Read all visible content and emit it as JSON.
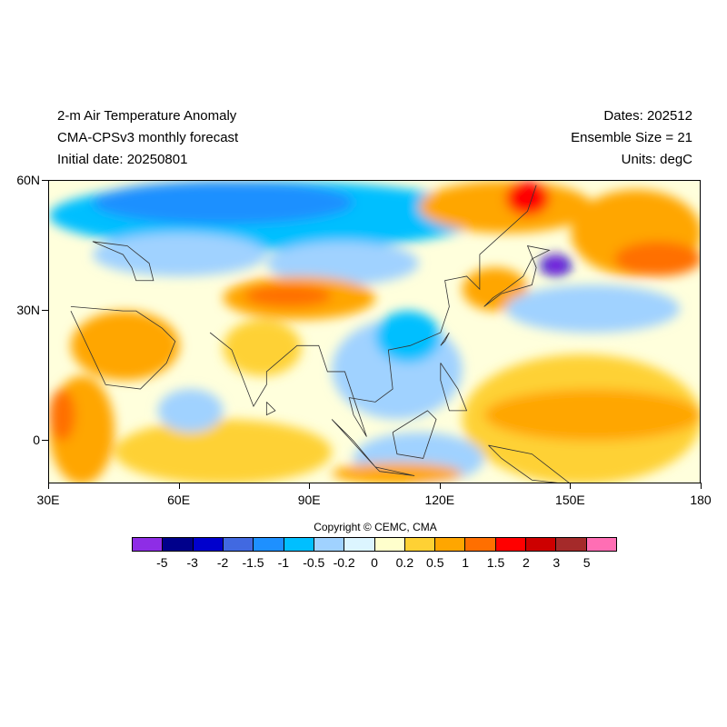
{
  "header": {
    "title": "2-m Air Temperature Anomaly",
    "model": "CMA-CPSv3 monthly forecast",
    "initial": "Initial date: 20250801",
    "dates": "Dates: 202512",
    "ensemble": "Ensemble Size = 21",
    "units": "Units: degC"
  },
  "map": {
    "projection": "equirectangular",
    "extent": {
      "lon": [
        30,
        180
      ],
      "lat": [
        -10,
        60
      ]
    },
    "lat_ticks": [
      {
        "value": 60,
        "label": "60N"
      },
      {
        "value": 30,
        "label": "30N"
      },
      {
        "value": 0,
        "label": "0"
      }
    ],
    "lon_ticks": [
      {
        "value": 30,
        "label": "30E"
      },
      {
        "value": 60,
        "label": "60E"
      },
      {
        "value": 90,
        "label": "90E"
      },
      {
        "value": 120,
        "label": "120E"
      },
      {
        "value": 150,
        "label": "150E"
      },
      {
        "value": 180,
        "label": "180"
      }
    ],
    "fields": [
      {
        "name": "arctic-siberia-cold",
        "lon": [
          30,
          130
        ],
        "lat": [
          44,
          60
        ],
        "level": -0.5
      },
      {
        "name": "siberia-deep-cold",
        "lon": [
          40,
          100
        ],
        "lat": [
          50,
          60
        ],
        "level": -1
      },
      {
        "name": "central-asia-cool",
        "lon": [
          40,
          80
        ],
        "lat": [
          38,
          48
        ],
        "level": -0.2
      },
      {
        "name": "mongolia-cool",
        "lon": [
          80,
          115
        ],
        "lat": [
          36,
          46
        ],
        "level": -0.2
      },
      {
        "name": "far-east-warm",
        "lon": [
          115,
          155
        ],
        "lat": [
          48,
          60
        ],
        "level": 0.5
      },
      {
        "name": "okhotsk-hot",
        "lon": [
          135,
          145
        ],
        "lat": [
          52,
          60
        ],
        "level": 1.5
      },
      {
        "name": "north-pacific-warm",
        "lon": [
          150,
          180
        ],
        "lat": [
          38,
          58
        ],
        "level": 0.5
      },
      {
        "name": "north-pacific-hot",
        "lon": [
          160,
          180
        ],
        "lat": [
          38,
          46
        ],
        "level": 1
      },
      {
        "name": "japan-cold-core",
        "lon": [
          143,
          150
        ],
        "lat": [
          38,
          43
        ],
        "level": -2
      },
      {
        "name": "japan-cold-center",
        "lon": [
          145,
          148
        ],
        "lat": [
          39,
          42
        ],
        "level": -5
      },
      {
        "name": "korea-warm",
        "lon": [
          125,
          140
        ],
        "lat": [
          30,
          40
        ],
        "level": 0.5
      },
      {
        "name": "nw-pacific-cool",
        "lon": [
          135,
          175
        ],
        "lat": [
          25,
          36
        ],
        "level": -0.2
      },
      {
        "name": "arabia-warm",
        "lon": [
          35,
          60
        ],
        "lat": [
          14,
          30
        ],
        "level": 0.5
      },
      {
        "name": "east-africa-warm",
        "lon": [
          30,
          45
        ],
        "lat": [
          -10,
          15
        ],
        "level": 0.5
      },
      {
        "name": "east-africa-hot",
        "lon": [
          30,
          36
        ],
        "lat": [
          0,
          12
        ],
        "level": 1
      },
      {
        "name": "tibet-warm",
        "lon": [
          70,
          105
        ],
        "lat": [
          28,
          38
        ],
        "level": 0.5
      },
      {
        "name": "tibet-hot",
        "lon": [
          75,
          95
        ],
        "lat": [
          31,
          36
        ],
        "level": 1
      },
      {
        "name": "india-warm",
        "lon": [
          70,
          88
        ],
        "lat": [
          15,
          28
        ],
        "level": 0.2
      },
      {
        "name": "se-asia-cool",
        "lon": [
          95,
          125
        ],
        "lat": [
          5,
          28
        ],
        "level": -0.2
      },
      {
        "name": "south-china-cool",
        "lon": [
          105,
          120
        ],
        "lat": [
          18,
          30
        ],
        "level": -0.5
      },
      {
        "name": "indian-ocean-warm",
        "lon": [
          45,
          95
        ],
        "lat": [
          -10,
          5
        ],
        "level": 0.2
      },
      {
        "name": "equatorial-pacific-warm",
        "lon": [
          125,
          180
        ],
        "lat": [
          -10,
          20
        ],
        "level": 0.2
      },
      {
        "name": "pacific-warm-band",
        "lon": [
          130,
          180
        ],
        "lat": [
          0,
          12
        ],
        "level": 0.5
      },
      {
        "name": "arabian-sea-cool",
        "lon": [
          55,
          70
        ],
        "lat": [
          2,
          12
        ],
        "level": -0.2
      },
      {
        "name": "maritime-cool",
        "lon": [
          100,
          130
        ],
        "lat": [
          -10,
          2
        ],
        "level": -0.2
      },
      {
        "name": "south-ocean-warm",
        "lon": [
          95,
          125
        ],
        "lat": [
          -10,
          -5
        ],
        "level": 0.5
      }
    ],
    "coastlines": [
      [
        [
          35,
          30
        ],
        [
          43,
          13
        ],
        [
          51,
          12
        ],
        [
          57,
          18
        ],
        [
          59,
          23
        ],
        [
          56,
          26
        ],
        [
          50,
          30
        ],
        [
          47,
          30
        ],
        [
          35,
          31
        ]
      ],
      [
        [
          67,
          25
        ],
        [
          72,
          21
        ],
        [
          77,
          8
        ],
        [
          80,
          13
        ],
        [
          80,
          16
        ],
        [
          87,
          22
        ],
        [
          92,
          22
        ],
        [
          94,
          16
        ],
        [
          98,
          16
        ],
        [
          103,
          1
        ],
        [
          100,
          6
        ],
        [
          99,
          10
        ],
        [
          105,
          9
        ],
        [
          109,
          12
        ],
        [
          108,
          21
        ],
        [
          113,
          22
        ],
        [
          120,
          25
        ],
        [
          122,
          31
        ],
        [
          121,
          37
        ],
        [
          126,
          38
        ],
        [
          129,
          35
        ],
        [
          129,
          43
        ],
        [
          140,
          53
        ],
        [
          142,
          59
        ]
      ],
      [
        [
          130,
          31
        ],
        [
          134,
          34
        ],
        [
          141,
          36
        ],
        [
          142,
          40
        ],
        [
          140,
          45
        ],
        [
          145,
          44
        ],
        [
          141,
          42
        ],
        [
          139,
          38
        ],
        [
          135,
          35
        ],
        [
          132,
          33
        ],
        [
          130,
          31
        ]
      ],
      [
        [
          95,
          5
        ],
        [
          105,
          -6
        ],
        [
          100,
          0
        ],
        [
          95,
          5
        ]
      ],
      [
        [
          105,
          -6
        ],
        [
          114,
          -8
        ],
        [
          106,
          -7
        ],
        [
          105,
          -6
        ]
      ],
      [
        [
          109,
          2
        ],
        [
          117,
          7
        ],
        [
          119,
          5
        ],
        [
          116,
          -4
        ],
        [
          110,
          -3
        ],
        [
          109,
          2
        ]
      ],
      [
        [
          120,
          18
        ],
        [
          124,
          12
        ],
        [
          126,
          7
        ],
        [
          122,
          7
        ],
        [
          120,
          14
        ],
        [
          120,
          18
        ]
      ],
      [
        [
          131,
          -1
        ],
        [
          141,
          -3
        ],
        [
          150,
          -10
        ],
        [
          141,
          -9
        ],
        [
          134,
          -4
        ],
        [
          131,
          -1
        ]
      ],
      [
        [
          40,
          46
        ],
        [
          48,
          45
        ],
        [
          53,
          41
        ],
        [
          54,
          37
        ],
        [
          50,
          37
        ],
        [
          49,
          40
        ],
        [
          47,
          43
        ],
        [
          40,
          46
        ]
      ],
      [
        [
          120,
          22
        ],
        [
          122,
          25
        ],
        [
          121,
          23
        ],
        [
          120,
          22
        ]
      ],
      [
        [
          80,
          9
        ],
        [
          82,
          7
        ],
        [
          80,
          6
        ],
        [
          80,
          9
        ]
      ]
    ]
  },
  "copyright": "Copyright © CEMC, CMA",
  "colorbar": {
    "colors": [
      "#8e2de6",
      "#00008b",
      "#0000cd",
      "#4169e1",
      "#1e90ff",
      "#00bfff",
      "#a0d2ff",
      "#dcf5ff",
      "#ffffcc",
      "#fed134",
      "#ffa600",
      "#ff6f00",
      "#ff0000",
      "#cd0000",
      "#a52a2a",
      "#ff6eb4"
    ],
    "levels": [
      "-5",
      "-3",
      "-2",
      "-1.5",
      "-1",
      "-0.5",
      "-0.2",
      "0",
      "0.2",
      "0.5",
      "1",
      "1.5",
      "2",
      "3",
      "5"
    ]
  }
}
